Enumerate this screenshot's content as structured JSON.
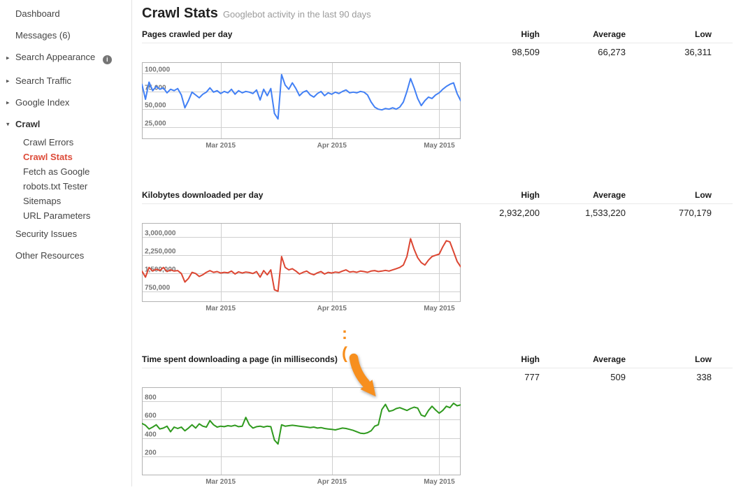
{
  "sidebar": {
    "items": [
      {
        "label": "Dashboard"
      },
      {
        "label": "Messages (6)"
      },
      {
        "label": "Search Appearance",
        "arrow": "collapsed",
        "has_info_icon": true
      },
      {
        "label": "Search Traffic",
        "arrow": "collapsed"
      },
      {
        "label": "Google Index",
        "arrow": "collapsed"
      },
      {
        "label": "Crawl",
        "arrow": "expanded",
        "bold": true
      },
      {
        "label": "Crawl Errors",
        "sub": true
      },
      {
        "label": "Crawl Stats",
        "sub": true,
        "active": true
      },
      {
        "label": "Fetch as Google",
        "sub": true
      },
      {
        "label": "robots.txt Tester",
        "sub": true
      },
      {
        "label": "Sitemaps",
        "sub": true
      },
      {
        "label": "URL Parameters",
        "sub": true
      },
      {
        "label": "Security Issues"
      },
      {
        "label": "Other Resources"
      }
    ]
  },
  "header": {
    "title": "Crawl Stats",
    "subtitle": "Googlebot activity in the last 90 days"
  },
  "stats_columns": {
    "high": "High",
    "average": "Average",
    "low": "Low"
  },
  "annotation": {
    "sad_face": ":("
  },
  "colors": {
    "active_nav_red": "#dd4b39",
    "chart_blue": "#4280f5",
    "chart_red": "#dc4632",
    "chart_green": "#2f9a1e",
    "annotation_orange": "#f78f1e",
    "gridline": "#cfcfcf",
    "chart_border": "#b3b3b3"
  },
  "chart_data": [
    {
      "type": "line",
      "title": "Pages crawled per day",
      "stats": {
        "high": "98,509",
        "average": "66,273",
        "low": "36,311"
      },
      "color": "#4280f5",
      "ylim": [
        8000,
        116000
      ],
      "grid": true,
      "legend": "none",
      "y_gridlines": [
        {
          "value": 100000,
          "label": "100,000"
        },
        {
          "value": 75000,
          "label": "75,000"
        },
        {
          "value": 50000,
          "label": "50,000"
        },
        {
          "value": 25000,
          "label": "25,000"
        }
      ],
      "x_ticks": [
        {
          "f": 0.247,
          "label": "Mar 2015"
        },
        {
          "f": 0.596,
          "label": "Apr 2015"
        },
        {
          "f": 0.933,
          "label": "May 2015"
        }
      ],
      "x_note": "daily values over last 90 days (Feb-May 2015)",
      "values": [
        85000,
        64000,
        88000,
        76000,
        82000,
        78000,
        80000,
        73000,
        78000,
        76000,
        79000,
        70000,
        52000,
        62000,
        74000,
        70000,
        66000,
        71000,
        74000,
        80000,
        74000,
        76000,
        72000,
        75000,
        73000,
        78000,
        71000,
        76000,
        73000,
        75000,
        74000,
        72000,
        77000,
        63000,
        78000,
        69000,
        79000,
        44000,
        36311,
        98509,
        84000,
        78000,
        87000,
        79000,
        69000,
        74000,
        76000,
        70000,
        67000,
        72000,
        75000,
        69000,
        73000,
        71000,
        74000,
        72000,
        75000,
        77000,
        73000,
        74000,
        73000,
        75000,
        74000,
        70000,
        60000,
        53000,
        50000,
        49000,
        51000,
        50000,
        52000,
        50000,
        53000,
        60000,
        75000,
        93000,
        80000,
        65000,
        55000,
        62000,
        67000,
        65000,
        70000,
        73000,
        78000,
        82000,
        85000,
        87000,
        72000,
        62000
      ]
    },
    {
      "type": "line",
      "title": "Kilobytes downloaded per day",
      "stats": {
        "high": "2,932,200",
        "average": "1,533,220",
        "low": "770,179"
      },
      "color": "#dc4632",
      "ylim": [
        330000,
        3580000
      ],
      "grid": true,
      "legend": "none",
      "y_gridlines": [
        {
          "value": 3000000,
          "label": "3,000,000"
        },
        {
          "value": 2250000,
          "label": "2,250,000"
        },
        {
          "value": 1500000,
          "label": "1,500,000"
        },
        {
          "value": 750000,
          "label": "750,000"
        }
      ],
      "x_ticks": [
        {
          "f": 0.247,
          "label": "Mar 2015"
        },
        {
          "f": 0.596,
          "label": "Apr 2015"
        },
        {
          "f": 0.933,
          "label": "May 2015"
        }
      ],
      "x_note": "daily values over last 90 days (Feb-May 2015)",
      "values": [
        1600000,
        1350000,
        1750000,
        1600000,
        1680000,
        1620000,
        1750000,
        1580000,
        1650000,
        1600000,
        1620000,
        1500000,
        1150000,
        1300000,
        1550000,
        1500000,
        1380000,
        1450000,
        1550000,
        1620000,
        1550000,
        1580000,
        1520000,
        1550000,
        1530000,
        1600000,
        1480000,
        1570000,
        1520000,
        1560000,
        1540000,
        1500000,
        1580000,
        1350000,
        1620000,
        1450000,
        1650000,
        830000,
        770179,
        2200000,
        1750000,
        1650000,
        1700000,
        1600000,
        1480000,
        1550000,
        1600000,
        1500000,
        1450000,
        1530000,
        1580000,
        1480000,
        1550000,
        1520000,
        1560000,
        1540000,
        1600000,
        1650000,
        1560000,
        1580000,
        1550000,
        1600000,
        1580000,
        1550000,
        1600000,
        1620000,
        1580000,
        1600000,
        1630000,
        1600000,
        1650000,
        1700000,
        1750000,
        1850000,
        2200000,
        2932200,
        2500000,
        2150000,
        1950000,
        1850000,
        2050000,
        2200000,
        2250000,
        2300000,
        2600000,
        2850000,
        2800000,
        2400000,
        2000000,
        1780000
      ]
    },
    {
      "type": "line",
      "title": "Time spent downloading a page (in milliseconds)",
      "stats": {
        "high": "777",
        "average": "509",
        "low": "338"
      },
      "color": "#2f9a1e",
      "ylim": [
        0,
        950
      ],
      "grid": true,
      "legend": "none",
      "y_gridlines": [
        {
          "value": 800,
          "label": "800"
        },
        {
          "value": 600,
          "label": "600"
        },
        {
          "value": 400,
          "label": "400"
        },
        {
          "value": 200,
          "label": "200"
        }
      ],
      "x_ticks": [
        {
          "f": 0.247,
          "label": "Mar 2015"
        },
        {
          "f": 0.596,
          "label": "Apr 2015"
        },
        {
          "f": 0.933,
          "label": "May 2015"
        }
      ],
      "x_note": "daily values over last 90 days (Feb-May 2015)",
      "values": [
        560,
        540,
        500,
        520,
        545,
        500,
        510,
        530,
        470,
        520,
        505,
        520,
        480,
        510,
        545,
        510,
        555,
        530,
        520,
        590,
        545,
        520,
        530,
        525,
        535,
        530,
        540,
        525,
        530,
        625,
        545,
        510,
        525,
        530,
        520,
        530,
        525,
        380,
        338,
        545,
        530,
        535,
        540,
        535,
        530,
        525,
        520,
        515,
        520,
        510,
        515,
        505,
        500,
        495,
        490,
        500,
        510,
        505,
        495,
        485,
        470,
        455,
        450,
        460,
        480,
        530,
        545,
        710,
        765,
        690,
        700,
        720,
        730,
        715,
        700,
        720,
        735,
        725,
        650,
        635,
        700,
        745,
        705,
        670,
        700,
        745,
        730,
        777,
        750,
        760
      ]
    }
  ]
}
